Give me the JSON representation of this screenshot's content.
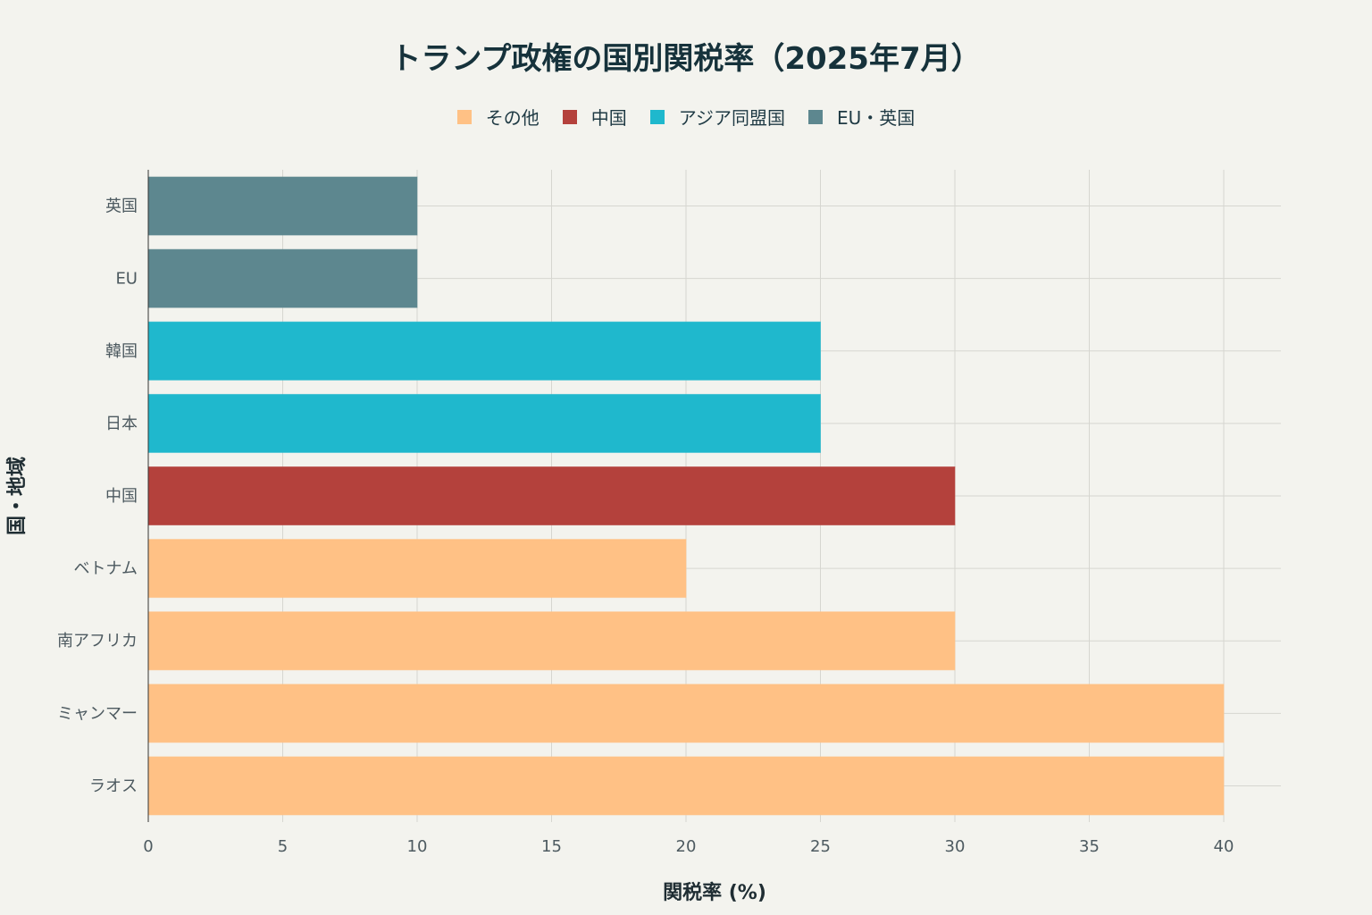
{
  "colors": {
    "other": "#ffc185",
    "china": "#b4413c",
    "asia_ally": "#1fb8cd",
    "eu_uk": "#5d878f",
    "grid": "#d6d6d0",
    "background": "#f3f3ee"
  },
  "chart_data": {
    "type": "bar",
    "orientation": "horizontal",
    "title": "トランプ政権の国別関税率（2025年7月）",
    "xlabel": "関税率 (%)",
    "ylabel": "国・地域",
    "xlim": [
      0,
      42
    ],
    "xticks": [
      0,
      5,
      10,
      15,
      20,
      25,
      30,
      35,
      40
    ],
    "legend": [
      {
        "name": "その他",
        "group": "other"
      },
      {
        "name": "中国",
        "group": "china"
      },
      {
        "name": "アジア同盟国",
        "group": "asia_ally"
      },
      {
        "name": "EU・英国",
        "group": "eu_uk"
      }
    ],
    "bars": [
      {
        "category": "英国",
        "value": 10,
        "group": "eu_uk"
      },
      {
        "category": "EU",
        "value": 10,
        "group": "eu_uk"
      },
      {
        "category": "韓国",
        "value": 25,
        "group": "asia_ally"
      },
      {
        "category": "日本",
        "value": 25,
        "group": "asia_ally"
      },
      {
        "category": "中国",
        "value": 30,
        "group": "china"
      },
      {
        "category": "ベトナム",
        "value": 20,
        "group": "other"
      },
      {
        "category": "南アフリカ",
        "value": 30,
        "group": "other"
      },
      {
        "category": "ミャンマー",
        "value": 40,
        "group": "other"
      },
      {
        "category": "ラオス",
        "value": 40,
        "group": "other"
      }
    ]
  }
}
